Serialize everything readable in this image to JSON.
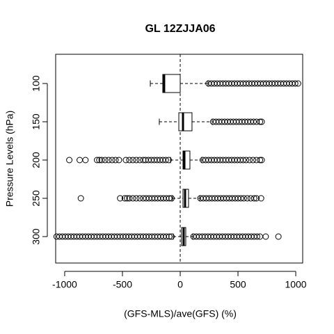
{
  "chart_data": {
    "type": "boxplot",
    "orientation": "horizontal",
    "title": "GL 12ZJJA06",
    "x_label": "(GFS-MLS)/ave(GFS) (%)",
    "y_label": "Pressure Levels (hPa)",
    "categories": [
      "100",
      "150",
      "200",
      "250",
      "300"
    ],
    "xlim": [
      -1078,
      1060
    ],
    "xticks": [
      -1000,
      -500,
      0,
      500,
      1000
    ],
    "vline": 0,
    "boxes": [
      {
        "whislo": -259,
        "q1": -151,
        "med": -139,
        "q3": 0,
        "whishi": 240,
        "fliers": [
          245,
          270,
          295,
          320,
          345,
          370,
          395,
          420,
          445,
          470,
          495,
          520,
          545,
          570,
          595,
          620,
          645,
          670,
          695,
          720,
          745,
          770,
          795,
          820,
          845,
          870,
          895,
          920,
          945,
          970,
          995,
          1020
        ]
      },
      {
        "whislo": -181,
        "q1": -12,
        "med": 24,
        "q3": 102,
        "whishi": 277,
        "fliers": [
          285,
          310,
          335,
          360,
          385,
          410,
          435,
          460,
          485,
          510,
          535,
          560,
          585,
          610,
          635,
          660,
          690,
          705
        ]
      },
      {
        "whislo": -84,
        "q1": 24,
        "med": 36,
        "q3": 84,
        "whishi": 187,
        "fliers": [
          -960,
          -870,
          -820,
          -720,
          -700,
          -680,
          -650,
          -620,
          -590,
          -560,
          -530,
          -470,
          -440,
          -410,
          -380,
          -350,
          -320,
          -300,
          -275,
          -250,
          -225,
          -200,
          -175,
          -150,
          -125,
          -100,
          195,
          220,
          245,
          270,
          295,
          320,
          345,
          370,
          395,
          420,
          445,
          470,
          495,
          520,
          545,
          570,
          600,
          630,
          660,
          690,
          705
        ]
      },
      {
        "whislo": -66,
        "q1": 24,
        "med": 42,
        "q3": 72,
        "whishi": 169,
        "fliers": [
          -860,
          -520,
          -480,
          -460,
          -440,
          -410,
          -380,
          -350,
          -320,
          -295,
          -270,
          -245,
          -220,
          -195,
          -170,
          -145,
          -120,
          -95,
          -75,
          175,
          200,
          225,
          250,
          275,
          300,
          325,
          350,
          375,
          400,
          425,
          450,
          475,
          500,
          525,
          550,
          580,
          610,
          640,
          660,
          700
        ]
      },
      {
        "whislo": -60,
        "q1": 12,
        "med": 30,
        "q3": 48,
        "whishi": 108,
        "fliers": [
          -1070,
          -1045,
          -1020,
          -995,
          -970,
          -945,
          -920,
          -895,
          -870,
          -845,
          -820,
          -795,
          -770,
          -745,
          -720,
          -695,
          -670,
          -645,
          -620,
          -595,
          -570,
          -545,
          -520,
          -495,
          -470,
          -445,
          -420,
          -395,
          -370,
          -345,
          -320,
          -295,
          -270,
          -245,
          -220,
          -195,
          -170,
          -145,
          -120,
          -95,
          -75,
          115,
          140,
          165,
          190,
          215,
          240,
          265,
          290,
          315,
          340,
          365,
          390,
          415,
          440,
          465,
          490,
          515,
          540,
          565,
          590,
          615,
          640,
          665,
          690,
          740,
          850
        ]
      }
    ]
  }
}
